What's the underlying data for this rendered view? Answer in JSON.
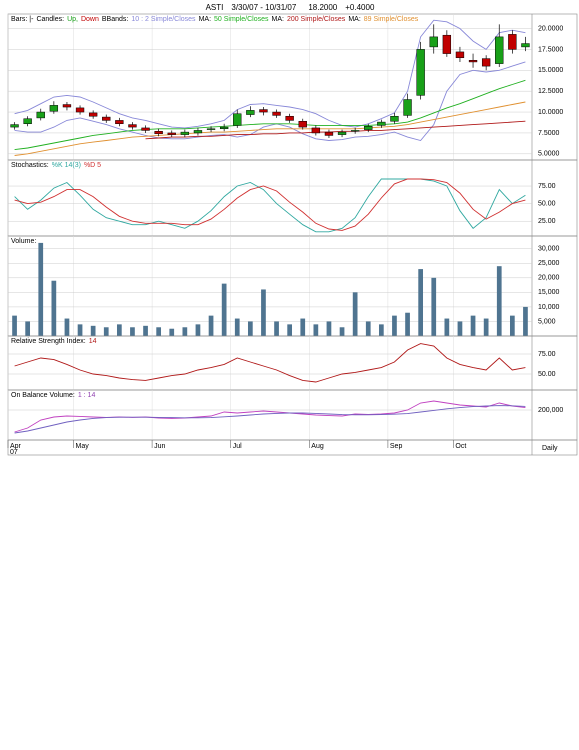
{
  "header": {
    "symbol": "ASTI",
    "range": "3/30/07 - 10/31/07",
    "last": "18.2000",
    "change": "+0.4000"
  },
  "chart_data": [
    {
      "type": "candlestick",
      "legend": [
        {
          "label": "Bars: |-"
        },
        {
          "label": "Candles:"
        },
        {
          "label": "Up,",
          "color": "#18a018"
        },
        {
          "label": "Down",
          "color": "#c00000"
        },
        {
          "label": "BBands:"
        },
        {
          "label": "10 : 2 Simple/Closes",
          "color": "#8888d8"
        },
        {
          "label": "MA:"
        },
        {
          "label": "50 Simple/Closes",
          "color": "#20b020"
        },
        {
          "label": "MA:"
        },
        {
          "label": "200 Simple/Closes",
          "color": "#b01818"
        },
        {
          "label": "MA:"
        },
        {
          "label": "89 Simple/Closes",
          "color": "#e09030"
        }
      ],
      "up_color": "#18a018",
      "down_color": "#c00000",
      "open": [
        8.2,
        8.6,
        9.3,
        10.1,
        10.9,
        10.5,
        9.9,
        9.4,
        9.0,
        8.5,
        8.1,
        7.7,
        7.5,
        7.3,
        7.5,
        7.9,
        8.0,
        8.4,
        9.7,
        10.3,
        10.0,
        9.5,
        8.9,
        8.1,
        7.6,
        7.3,
        7.7,
        7.9,
        8.4,
        8.9,
        9.6,
        12.0,
        17.8,
        19.2,
        17.2,
        16.2,
        16.4,
        15.8,
        19.3,
        17.8
      ],
      "high": [
        8.8,
        9.5,
        10.4,
        11.3,
        11.2,
        10.8,
        10.2,
        9.7,
        9.3,
        8.8,
        8.4,
        8.0,
        7.8,
        7.9,
        8.1,
        8.3,
        8.6,
        10.3,
        10.7,
        10.6,
        10.3,
        9.8,
        9.2,
        8.4,
        7.9,
        7.9,
        8.1,
        8.6,
        9.1,
        9.9,
        12.2,
        18.4,
        20.5,
        19.8,
        17.8,
        17.0,
        16.8,
        20.5,
        19.8,
        19.0
      ],
      "low": [
        7.9,
        8.3,
        9.0,
        9.8,
        10.2,
        9.7,
        9.2,
        8.7,
        8.3,
        7.9,
        7.5,
        7.1,
        7.0,
        7.0,
        7.2,
        7.6,
        7.7,
        8.1,
        9.4,
        9.6,
        9.3,
        8.7,
        7.9,
        7.2,
        6.9,
        7.0,
        7.4,
        7.6,
        8.1,
        8.6,
        9.3,
        11.5,
        17.0,
        16.6,
        16.0,
        15.3,
        15.0,
        15.4,
        17.0,
        17.3
      ],
      "close": [
        8.5,
        9.2,
        10.0,
        10.8,
        10.6,
        10.0,
        9.5,
        9.0,
        8.6,
        8.2,
        7.8,
        7.4,
        7.3,
        7.6,
        7.8,
        8.0,
        8.2,
        9.8,
        10.2,
        10.0,
        9.6,
        9.0,
        8.2,
        7.5,
        7.2,
        7.6,
        7.8,
        8.3,
        8.8,
        9.5,
        11.5,
        17.5,
        19.0,
        17.0,
        16.5,
        16.0,
        15.5,
        19.0,
        17.5,
        18.2
      ],
      "series": [
        {
          "color": "#8888d8",
          "values": [
            9.8,
            10.2,
            11.0,
            11.8,
            12.0,
            11.8,
            11.2,
            10.5,
            9.8,
            9.3,
            9.0,
            8.6,
            8.2,
            8.1,
            8.3,
            8.6,
            9.0,
            10.3,
            10.9,
            11.0,
            10.8,
            10.6,
            10.3,
            9.8,
            9.0,
            8.4,
            8.2,
            8.6,
            9.2,
            9.9,
            12.5,
            19.0,
            21.0,
            20.8,
            20.0,
            18.5,
            17.5,
            19.5,
            19.8,
            19.5
          ]
        },
        {
          "color": "#8888d8",
          "values": [
            7.8,
            7.6,
            7.6,
            8.2,
            9.0,
            9.3,
            8.9,
            8.5,
            8.0,
            7.6,
            7.2,
            6.9,
            6.8,
            6.8,
            7.0,
            7.2,
            7.3,
            7.0,
            7.3,
            8.2,
            8.6,
            8.2,
            7.4,
            6.8,
            6.6,
            6.7,
            7.0,
            7.1,
            7.3,
            7.6,
            7.0,
            6.6,
            8.5,
            12.5,
            14.5,
            15.0,
            14.8,
            15.0,
            15.5,
            16.0
          ]
        },
        {
          "color": "#20b020",
          "values": [
            5.5,
            5.7,
            6.0,
            6.3,
            6.6,
            6.9,
            7.2,
            7.4,
            7.6,
            7.8,
            7.9,
            8.0,
            8.0,
            8.0,
            8.1,
            8.2,
            8.3,
            8.4,
            8.5,
            8.6,
            8.6,
            8.6,
            8.5,
            8.4,
            8.4,
            8.4,
            8.4,
            8.4,
            8.5,
            8.6,
            8.8,
            9.3,
            9.9,
            10.5,
            11.0,
            11.6,
            12.2,
            12.8,
            13.3,
            13.8
          ]
        },
        {
          "color": "#b01818",
          "values": [
            null,
            null,
            null,
            null,
            null,
            null,
            null,
            null,
            null,
            null,
            6.8,
            6.9,
            7.0,
            7.0,
            7.1,
            7.1,
            7.2,
            7.3,
            7.3,
            7.4,
            7.4,
            7.5,
            7.5,
            7.6,
            7.6,
            7.7,
            7.7,
            7.8,
            7.8,
            7.9,
            8.0,
            8.1,
            8.2,
            8.3,
            8.4,
            8.5,
            8.6,
            8.7,
            8.8,
            8.9
          ]
        },
        {
          "color": "#e09030",
          "values": [
            4.8,
            5.0,
            5.3,
            5.6,
            5.9,
            6.2,
            6.4,
            6.6,
            6.8,
            7.0,
            7.1,
            7.2,
            7.3,
            7.4,
            7.5,
            7.6,
            7.6,
            7.7,
            7.8,
            7.9,
            8.0,
            8.0,
            8.0,
            8.0,
            8.0,
            8.0,
            8.0,
            8.1,
            8.2,
            8.3,
            8.5,
            8.8,
            9.1,
            9.4,
            9.7,
            10.0,
            10.3,
            10.6,
            10.9,
            11.2
          ]
        }
      ],
      "ylim": [
        4.5,
        21.5
      ],
      "yticks": [
        {
          "value": 5,
          "label": "5.0000"
        },
        {
          "value": 7.5,
          "label": "7.5000"
        },
        {
          "value": 10,
          "label": "10.0000"
        },
        {
          "value": 12.5,
          "label": "12.5000"
        },
        {
          "value": 15,
          "label": "15.0000"
        },
        {
          "value": 17.5,
          "label": "17.5000"
        },
        {
          "value": 20,
          "label": "20.0000"
        }
      ],
      "grid": true
    },
    {
      "type": "line",
      "legend": [
        {
          "label": "Stochastics:"
        },
        {
          "label": "%K 14(3)",
          "color": "#30a8a0"
        },
        {
          "label": "%D 5",
          "color": "#d03030"
        }
      ],
      "series": [
        {
          "color": "#30a8a0",
          "values": [
            60,
            42,
            55,
            72,
            80,
            62,
            42,
            30,
            25,
            20,
            20,
            25,
            20,
            15,
            25,
            40,
            60,
            75,
            80,
            70,
            50,
            35,
            20,
            10,
            10,
            15,
            30,
            60,
            85,
            85,
            85,
            85,
            82,
            75,
            40,
            15,
            30,
            70,
            50,
            62
          ]
        },
        {
          "color": "#d03030",
          "values": [
            55,
            50,
            52,
            60,
            70,
            70,
            60,
            45,
            32,
            25,
            22,
            22,
            22,
            20,
            20,
            28,
            42,
            58,
            70,
            75,
            68,
            52,
            38,
            22,
            14,
            12,
            18,
            35,
            58,
            78,
            85,
            85,
            84,
            80,
            65,
            42,
            28,
            38,
            50,
            55
          ]
        }
      ],
      "ylim": [
        4,
        112
      ],
      "yticks": [
        {
          "value": 25,
          "label": "25.00"
        },
        {
          "value": 50,
          "label": "50.00"
        },
        {
          "value": 75,
          "label": "75.00"
        }
      ],
      "grid": true
    },
    {
      "type": "bar",
      "legend": [
        {
          "label": "Volume:"
        }
      ],
      "color": "#4f7490",
      "values": [
        7000,
        5000,
        32000,
        19000,
        6000,
        4000,
        3500,
        3000,
        4000,
        3000,
        3500,
        3000,
        2500,
        3000,
        4000,
        7000,
        18000,
        6000,
        5000,
        16000,
        5000,
        4000,
        6000,
        4000,
        5000,
        3000,
        15000,
        5000,
        4000,
        7000,
        8000,
        23000,
        20000,
        6000,
        5000,
        7000,
        6000,
        24000,
        7000,
        10000
      ],
      "ylim": [
        0,
        33000
      ],
      "yticks": [
        {
          "value": 5000,
          "label": "5,000"
        },
        {
          "value": 10000,
          "label": "10,000"
        },
        {
          "value": 15000,
          "label": "15,000"
        },
        {
          "value": 20000,
          "label": "20,000"
        },
        {
          "value": 25000,
          "label": "25,000"
        },
        {
          "value": 30000,
          "label": "30,000"
        }
      ],
      "grid": true
    },
    {
      "type": "line",
      "legend": [
        {
          "label": "Relative Strength Index:"
        },
        {
          "label": "14",
          "color": "#b01818"
        }
      ],
      "series": [
        {
          "color": "#b01818",
          "values": [
            60,
            65,
            70,
            68,
            62,
            55,
            50,
            48,
            45,
            43,
            42,
            45,
            48,
            50,
            55,
            58,
            62,
            70,
            65,
            60,
            55,
            48,
            42,
            40,
            45,
            50,
            52,
            55,
            58,
            65,
            80,
            88,
            85,
            70,
            62,
            58,
            55,
            70,
            55,
            58
          ]
        }
      ],
      "ylim": [
        30,
        95
      ],
      "yticks": [
        {
          "value": 50,
          "label": "50.00"
        },
        {
          "value": 75,
          "label": "75.00"
        }
      ],
      "grid": true
    },
    {
      "type": "line",
      "legend": [
        {
          "label": "On Balance Volume:"
        },
        {
          "label": "1 : 14",
          "color": "#9040b0"
        }
      ],
      "series": [
        {
          "color": "#c040c0",
          "values": [
            90000,
            110000,
            150000,
            165000,
            170000,
            168000,
            165000,
            163000,
            165000,
            163000,
            165000,
            160000,
            158000,
            160000,
            165000,
            170000,
            190000,
            185000,
            190000,
            195000,
            190000,
            185000,
            180000,
            175000,
            172000,
            170000,
            180000,
            178000,
            180000,
            185000,
            200000,
            235000,
            245000,
            235000,
            225000,
            220000,
            215000,
            235000,
            220000,
            212000
          ]
        },
        {
          "color": "#7060c0",
          "values": [
            85000,
            95000,
            110000,
            125000,
            140000,
            150000,
            158000,
            162000,
            164000,
            164000,
            164000,
            163000,
            162000,
            161000,
            161000,
            162000,
            166000,
            170000,
            175000,
            180000,
            183000,
            185000,
            185000,
            183000,
            180000,
            177000,
            176000,
            176000,
            177000,
            179000,
            182000,
            190000,
            198000,
            206000,
            212000,
            217000,
            220000,
            222000,
            221000,
            218000
          ]
        }
      ],
      "ylim": [
        50000,
        290000
      ],
      "yticks": [
        {
          "value": 200000,
          "label": "200,000"
        }
      ],
      "grid": true,
      "categories": [
        "Apr",
        null,
        null,
        null,
        null,
        "May",
        null,
        null,
        null,
        null,
        null,
        "Jun",
        null,
        null,
        null,
        null,
        null,
        "Jul",
        null,
        null,
        null,
        null,
        null,
        "Aug",
        null,
        null,
        null,
        null,
        null,
        "Sep",
        null,
        null,
        null,
        null,
        "Oct",
        null,
        null,
        null,
        null,
        null
      ],
      "year": "07",
      "frequency": "Daily"
    }
  ]
}
